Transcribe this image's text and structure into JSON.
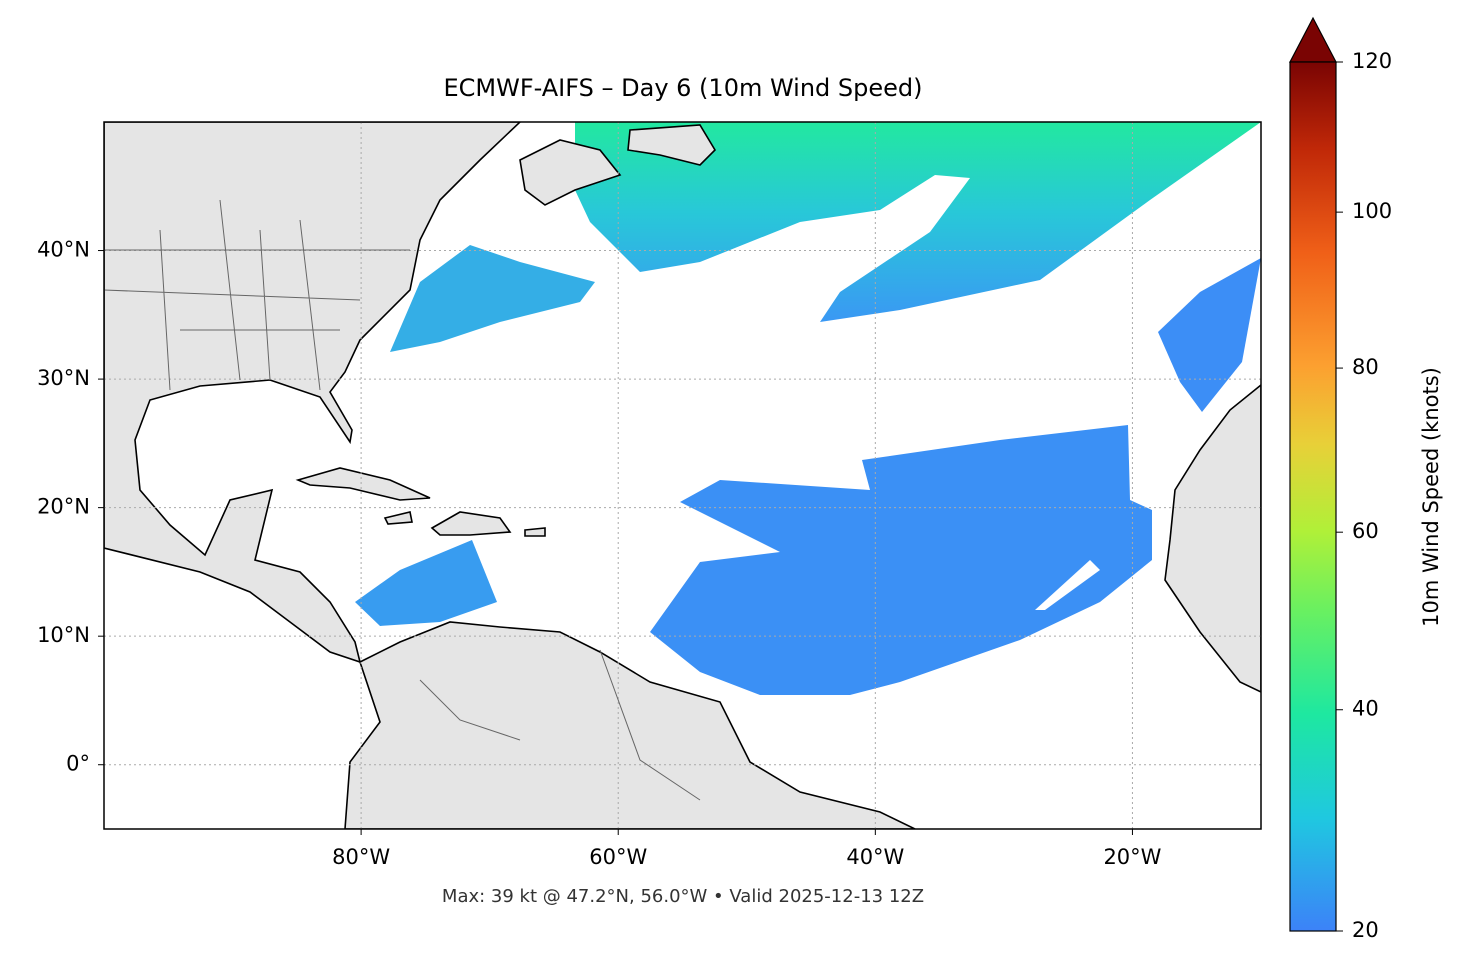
{
  "title": "ECMWF-AIFS – Day 6 (10m Wind Speed)",
  "map": {
    "lon_range": [
      -100,
      -10
    ],
    "lat_range": [
      -5,
      50
    ],
    "lon_ticks": [
      {
        "value": -80,
        "label": "80°W"
      },
      {
        "value": -60,
        "label": "60°W"
      },
      {
        "value": -40,
        "label": "40°W"
      },
      {
        "value": -20,
        "label": "20°W"
      }
    ],
    "lat_ticks": [
      {
        "value": 0,
        "label": "0°"
      },
      {
        "value": 10,
        "label": "10°N"
      },
      {
        "value": 20,
        "label": "20°N"
      },
      {
        "value": 30,
        "label": "30°N"
      },
      {
        "value": 40,
        "label": "40°N"
      }
    ]
  },
  "colorbar": {
    "label": "10m Wind Speed (knots)",
    "range": [
      20,
      120
    ],
    "gamma": 0.85,
    "ticks": [
      20,
      40,
      60,
      80,
      100,
      120
    ]
  },
  "footer": "Max: 39 kt @ 47.2°N, 56.0°W • Valid 2025-12-13 12Z"
}
